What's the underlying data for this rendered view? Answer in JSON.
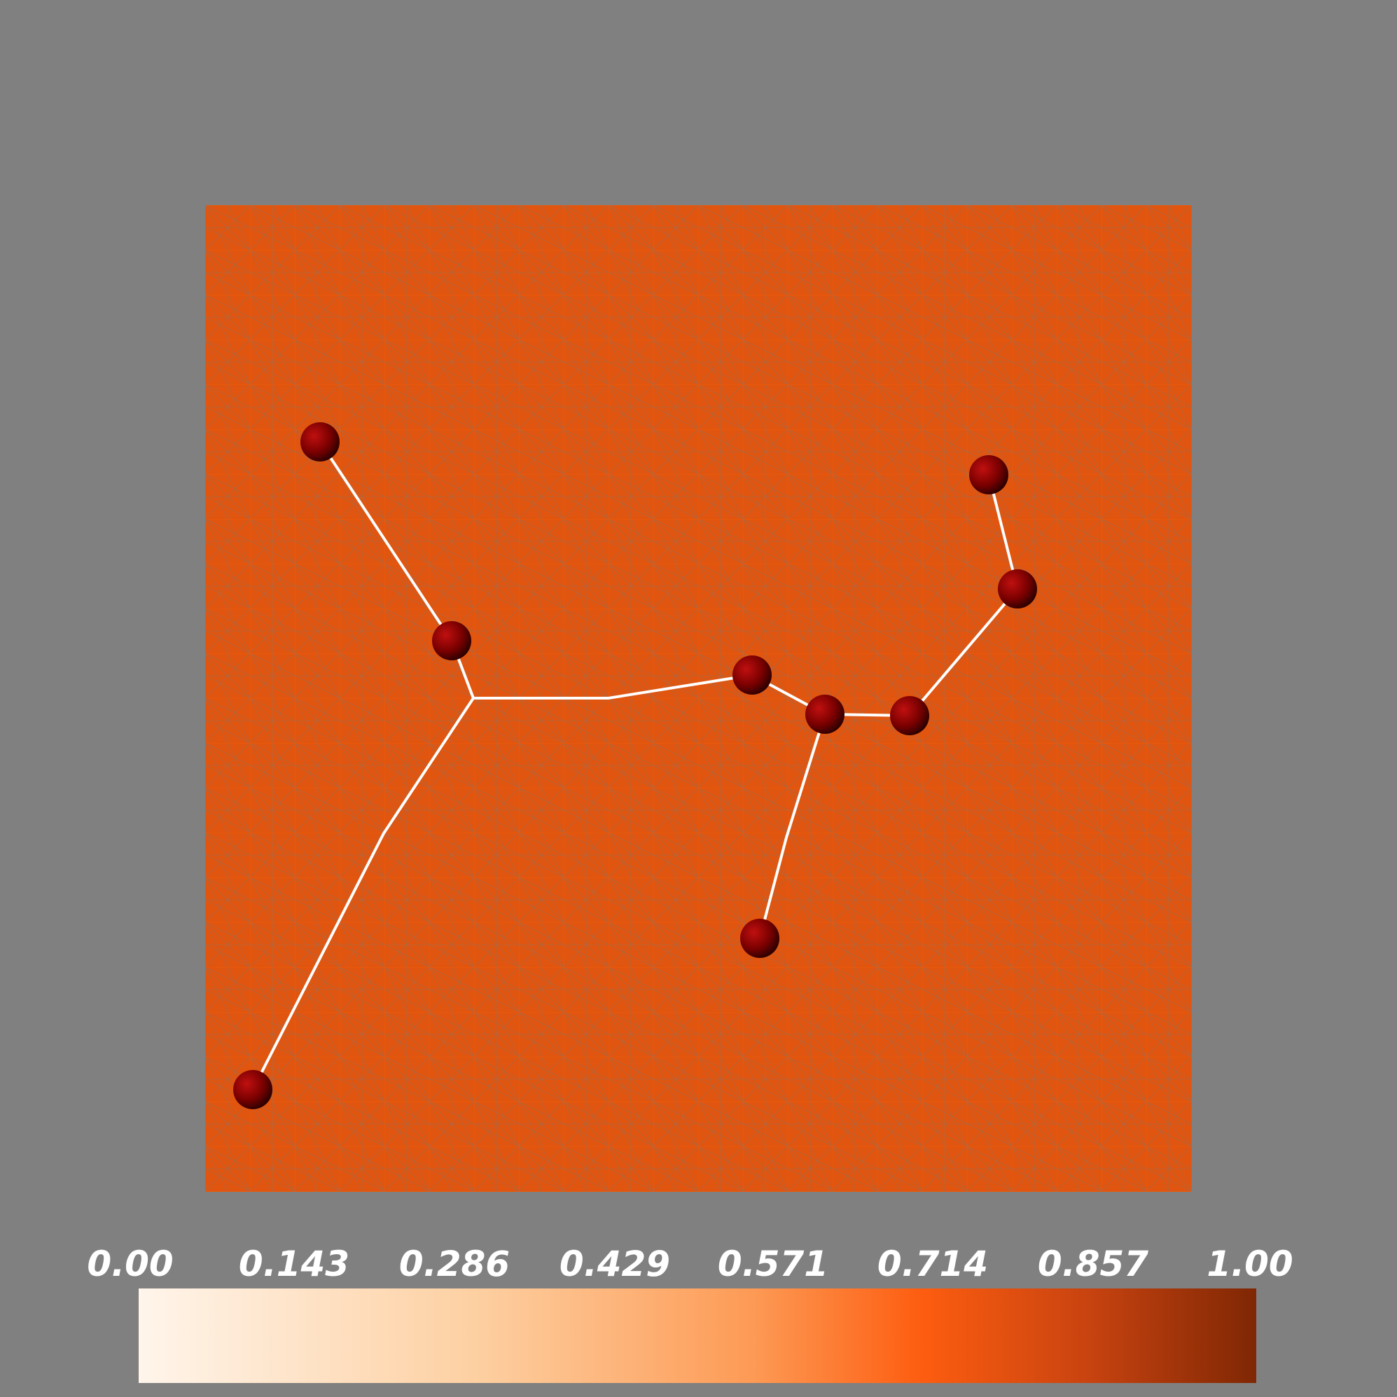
{
  "colorbar": {
    "ticks": [
      "0.00",
      "0.143",
      "0.286",
      "0.429",
      "0.571",
      "0.714",
      "0.857",
      "1.00"
    ]
  }
}
